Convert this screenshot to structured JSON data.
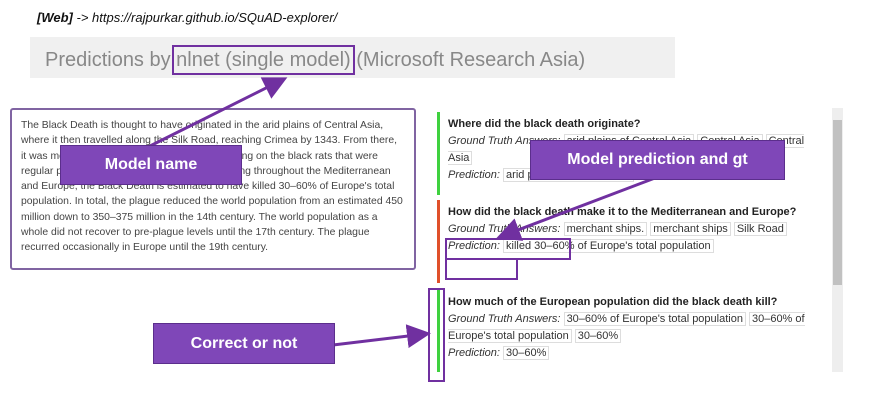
{
  "header": {
    "source_tag": "[Web]",
    "url": " -> https://rajpurkar.github.io/SQuAD-explorer/"
  },
  "title": {
    "prefix": "Predictions by ",
    "model_name": "nlnet (single model)",
    "suffix": " (Microsoft Research Asia)"
  },
  "passage": "The Black Death is thought to have originated in the arid plains of Central Asia, where it then travelled along the Silk Road, reaching Crimea by 1343. From there, it was most likely carried by Oriental rat fleas living on the black rats that were regular passengers on merchant ships. Spreading throughout the Mediterranean and Europe, the Black Death is estimated to have killed 30–60% of Europe's total population. In total, the plague reduced the world population from an estimated 450 million down to 350–375 million in the 14th century. The world population as a whole did not recover to pre-plague levels until the 17th century. The plague recurred occasionally in Europe until the 19th century.",
  "questions": [
    {
      "question": "Where did the black death originate?",
      "gt_label": "Ground Truth Answers:",
      "answers": [
        "arid plains of Central Asia",
        "Central Asia",
        "Central Asia"
      ],
      "pred_label": "Prediction:",
      "prediction": "arid plains of Central Asia"
    },
    {
      "question": "How did the black death make it to the Mediterranean and Europe?",
      "gt_label": "Ground Truth Answers:",
      "answers": [
        "merchant ships.",
        "merchant ships",
        "Silk Road"
      ],
      "pred_label": "Prediction:",
      "prediction": "killed 30–60% of Europe's total population"
    },
    {
      "question": "How much of the European population did the black death kill?",
      "gt_label": "Ground Truth Answers:",
      "answers": [
        "30–60% of Europe's total population",
        "30–60% of Europe's total population",
        "30–60%"
      ],
      "pred_label": "Prediction:",
      "prediction": "30–60%"
    }
  ],
  "callouts": {
    "model_name": "Model name",
    "prediction_gt": "Model prediction and gt",
    "correct": "Correct or not"
  }
}
